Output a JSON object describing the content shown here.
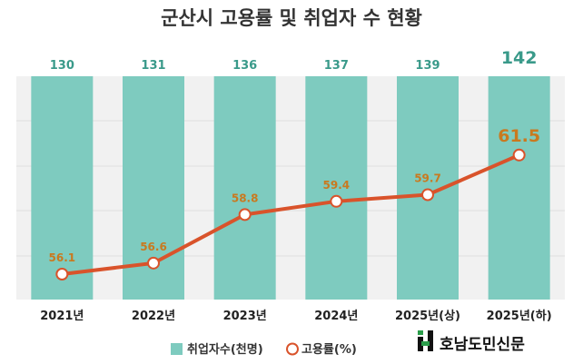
{
  "chart_data": {
    "type": "bar",
    "title": "군산시 고용률 및 취업자 수 현황",
    "categories": [
      "2021년",
      "2022년",
      "2023년",
      "2024년",
      "2025년(상)",
      "2025년(하)"
    ],
    "series": [
      {
        "name": "취업자수(천명)",
        "type": "bar",
        "values": [
          130,
          131,
          136,
          137,
          139,
          142
        ],
        "color": "#7ecbbf"
      },
      {
        "name": "고용률(%)",
        "type": "line",
        "values": [
          56.1,
          56.6,
          58.8,
          59.4,
          59.7,
          61.5
        ],
        "color": "#d9532b"
      }
    ],
    "grid": true,
    "legend": "bottom-center"
  },
  "colors": {
    "bar": "#7ecbbf",
    "bar_label": "#3a9a8a",
    "line": "#d9532b",
    "rate_label": "#c9791f",
    "plot_bg": "#f1f1f1"
  },
  "brand": {
    "name": "호남도민신문",
    "icon": "brand-logo-icon"
  }
}
